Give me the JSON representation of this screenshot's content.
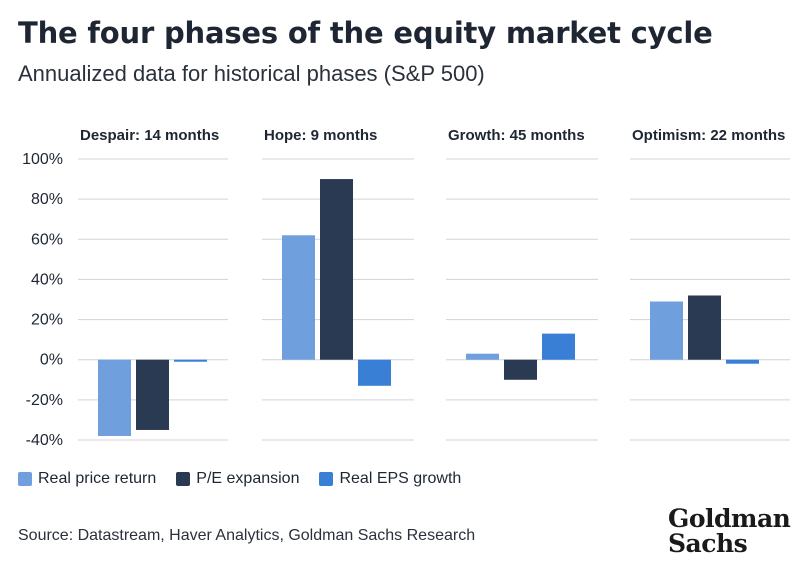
{
  "header": {
    "title": "The four phases of the equity market cycle",
    "subtitle": "Annualized data for historical phases (S&P 500)"
  },
  "chart_data": {
    "type": "bar",
    "categories": [
      "Despair: 14 months",
      "Hope: 9 months",
      "Growth: 45 months",
      "Optimism: 22 months"
    ],
    "series": [
      {
        "name": "Real price return",
        "color": "#6f9fdc",
        "values": [
          -38,
          62,
          3,
          29
        ]
      },
      {
        "name": "P/E expansion",
        "color": "#2b3a53",
        "values": [
          -35,
          90,
          -10,
          32
        ]
      },
      {
        "name": "Real EPS growth",
        "color": "#3a7fd6",
        "values": [
          -1,
          -13,
          13,
          -2
        ]
      }
    ],
    "yticks": [
      "100%",
      "80%",
      "60%",
      "40%",
      "20%",
      "0%",
      "-20%",
      "-40%"
    ],
    "ylim": [
      -40,
      100
    ],
    "xlabel": "",
    "ylabel": "",
    "grid": true,
    "legend": "bottom-left"
  },
  "footer": {
    "source": "Source: Datastream, Haver Analytics, Goldman Sachs Research",
    "logo_line1": "Goldman",
    "logo_line2": "Sachs"
  }
}
